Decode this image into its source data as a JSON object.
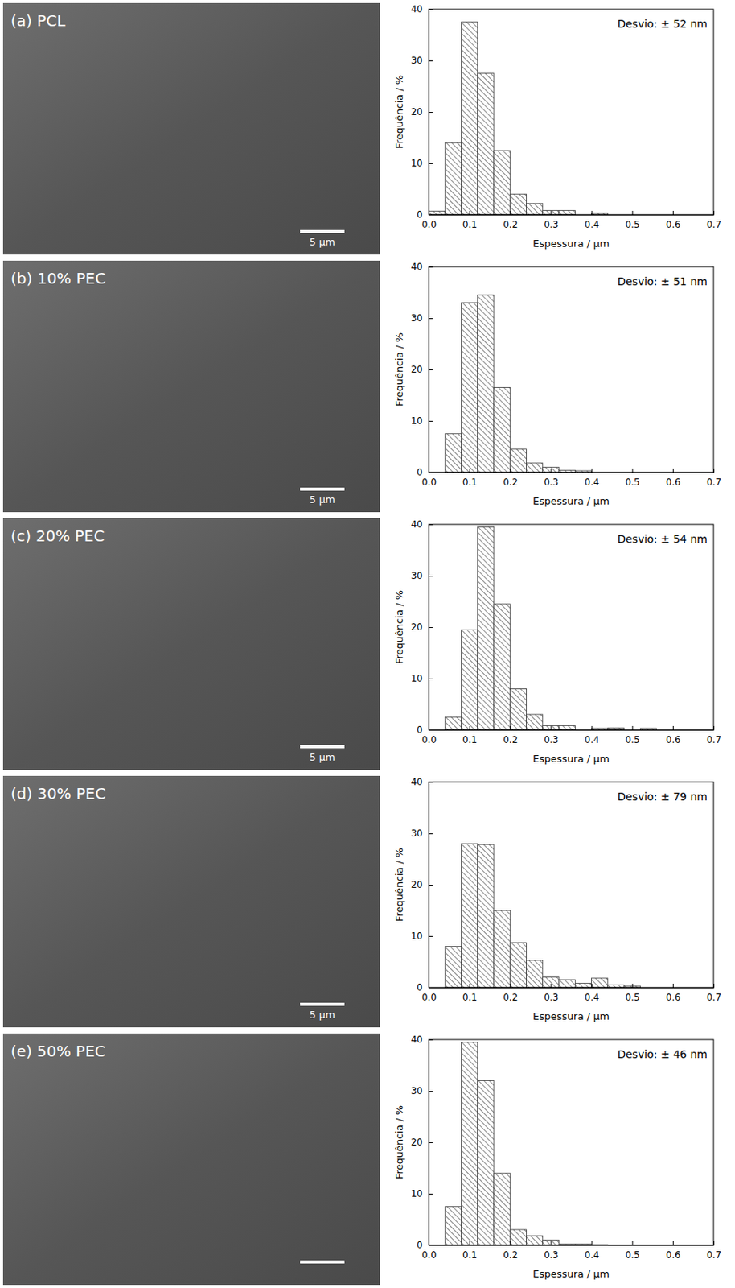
{
  "chart_data": [
    {
      "type": "histogram",
      "x_label": "Espessura / µm",
      "y_label": "Frequência / %",
      "annotation": "Desvio: ± 52 nm",
      "bins": [
        0,
        0.04,
        0.08,
        0.12,
        0.16,
        0.2,
        0.24,
        0.28,
        0.32,
        0.36,
        0.4,
        0.44,
        0.48,
        0.52,
        0.56,
        0.6
      ],
      "values": [
        0.7,
        14,
        37.5,
        27.5,
        12.5,
        4,
        2.2,
        0.8,
        0.8,
        0,
        0.3,
        0,
        0,
        0,
        0
      ],
      "color": "#333333",
      "xlim": [
        0,
        0.7
      ],
      "xticks": [
        {
          "value": 0,
          "label": "0.0"
        },
        0.1,
        0.2,
        0.3,
        0.4,
        0.5,
        0.6,
        0.7
      ],
      "ylim": [
        0,
        40
      ],
      "yticks": [
        0,
        10,
        20,
        30,
        40
      ],
      "grid": false
    },
    {
      "type": "histogram",
      "x_label": "Espessura / µm",
      "y_label": "Frequência / %",
      "annotation": "Desvio: ± 51 nm",
      "bins": [
        0,
        0.04,
        0.08,
        0.12,
        0.16,
        0.2,
        0.24,
        0.28,
        0.32,
        0.36,
        0.4,
        0.44,
        0.48,
        0.52,
        0.56,
        0.6
      ],
      "values": [
        0,
        7.5,
        33,
        34.5,
        16.5,
        4.5,
        1.8,
        1,
        0.4,
        0.3,
        0,
        0,
        0,
        0,
        0
      ],
      "color": "#333333",
      "xlim": [
        0,
        0.7
      ],
      "xticks": [
        {
          "value": 0,
          "label": "0.0"
        },
        0.1,
        0.2,
        0.3,
        0.4,
        0.5,
        0.6,
        0.7
      ],
      "ylim": [
        0,
        40
      ],
      "yticks": [
        0,
        10,
        20,
        30,
        40
      ],
      "grid": false
    },
    {
      "type": "histogram",
      "x_label": "Espessura / µm",
      "y_label": "Frequência / %",
      "annotation": "Desvio: ± 54 nm",
      "bins": [
        0,
        0.04,
        0.08,
        0.12,
        0.16,
        0.2,
        0.24,
        0.28,
        0.32,
        0.36,
        0.4,
        0.44,
        0.48,
        0.52,
        0.56,
        0.6
      ],
      "values": [
        0,
        2.5,
        19.5,
        39.5,
        24.5,
        8,
        3,
        0.8,
        0.8,
        0,
        0.3,
        0.4,
        0,
        0.3,
        0
      ],
      "color": "#333333",
      "xlim": [
        0,
        0.7
      ],
      "xticks": [
        {
          "value": 0,
          "label": "0.0"
        },
        0.1,
        0.2,
        0.3,
        0.4,
        0.5,
        0.6,
        0.7
      ],
      "ylim": [
        0,
        40
      ],
      "yticks": [
        0,
        10,
        20,
        30,
        40
      ],
      "grid": false
    },
    {
      "type": "histogram",
      "x_label": "Espessura / µm",
      "y_label": "Frequência / %",
      "annotation": "Desvio: ± 79 nm",
      "bins": [
        0,
        0.04,
        0.08,
        0.12,
        0.16,
        0.2,
        0.24,
        0.28,
        0.32,
        0.36,
        0.4,
        0.44,
        0.48,
        0.52,
        0.56,
        0.6
      ],
      "values": [
        0,
        8,
        28,
        27.8,
        15,
        8.7,
        5.3,
        2,
        1.5,
        0.8,
        1.8,
        0.5,
        0.3,
        0,
        0
      ],
      "color": "#333333",
      "xlim": [
        0,
        0.7
      ],
      "xticks": [
        {
          "value": 0,
          "label": "0.0"
        },
        0.1,
        0.2,
        0.3,
        0.4,
        0.5,
        0.6,
        0.7
      ],
      "ylim": [
        0,
        40
      ],
      "yticks": [
        0,
        10,
        20,
        30,
        40
      ],
      "grid": false
    },
    {
      "type": "histogram",
      "x_label": "Espessura / µm",
      "y_label": "Frequência / %",
      "annotation": "Desvio: ± 46 nm",
      "bins": [
        0,
        0.04,
        0.08,
        0.12,
        0.16,
        0.2,
        0.24,
        0.28,
        0.32,
        0.36,
        0.4,
        0.44,
        0.48,
        0.52,
        0.56,
        0.6
      ],
      "values": [
        0,
        7.5,
        39.5,
        32,
        14,
        3,
        1.8,
        1,
        0.2,
        0.2,
        0.1,
        0,
        0,
        0,
        0
      ],
      "color": "#333333",
      "xlim": [
        0,
        0.7
      ],
      "xticks": [
        {
          "value": 0,
          "label": "0.0"
        },
        0.1,
        0.2,
        0.3,
        0.4,
        0.5,
        0.6,
        0.7
      ],
      "ylim": [
        0,
        40
      ],
      "yticks": [
        0,
        10,
        20,
        30,
        40
      ],
      "grid": false
    }
  ],
  "micrographs": [
    {
      "label": "(a) PCL",
      "scale_bar": "5 µm"
    },
    {
      "label": "(b) 10% PEC",
      "scale_bar": "5 µm"
    },
    {
      "label": "(c) 20% PEC",
      "scale_bar": "5 µm"
    },
    {
      "label": "(d) 30% PEC",
      "scale_bar": "5 µm"
    },
    {
      "label": "(e) 50% PEC"
    }
  ]
}
